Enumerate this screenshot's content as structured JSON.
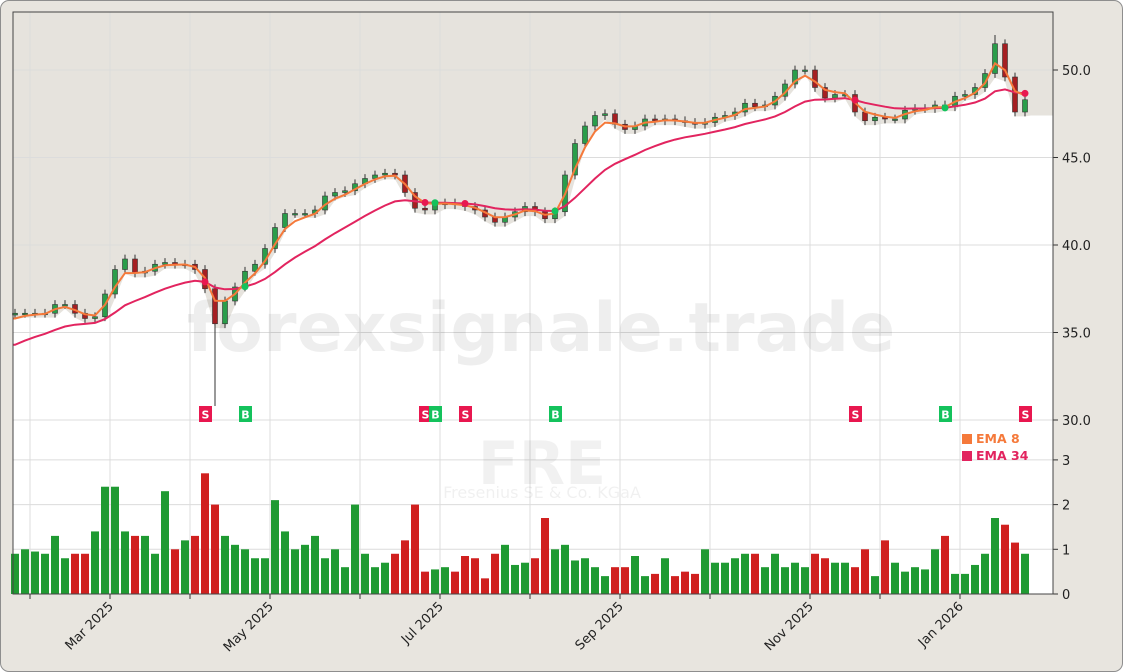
{
  "chart_data": {
    "type": "candlestick",
    "ticker_watermark": "FRE",
    "company_watermark": "Fresenius SE & Co. KGaA",
    "site_watermark": "forexsignale.trade",
    "dates": [
      "2025-01-27",
      "2025-01-30",
      "2025-02-03",
      "2025-02-06",
      "2025-02-10",
      "2025-02-13",
      "2025-02-17",
      "2025-02-21",
      "2025-02-24",
      "2025-02-28",
      "2025-03-04",
      "2025-03-07",
      "2025-03-11",
      "2025-03-14",
      "2025-03-18",
      "2025-03-21",
      "2025-03-26",
      "2025-03-28",
      "2025-04-02",
      "2025-04-07",
      "2025-04-09",
      "2025-04-14",
      "2025-04-17",
      "2025-04-22",
      "2025-04-24",
      "2025-04-28",
      "2025-05-02",
      "2025-05-05",
      "2025-05-09",
      "2025-05-12",
      "2025-05-16",
      "2025-05-19",
      "2025-05-23",
      "2025-05-27",
      "2025-05-30",
      "2025-06-03",
      "2025-06-06",
      "2025-06-10",
      "2025-06-13",
      "2025-06-17",
      "2025-06-20",
      "2025-06-24",
      "2025-06-27",
      "2025-07-01",
      "2025-07-04",
      "2025-07-08",
      "2025-07-11",
      "2025-07-15",
      "2025-07-18",
      "2025-07-22",
      "2025-07-25",
      "2025-07-29",
      "2025-08-01",
      "2025-08-05",
      "2025-08-08",
      "2025-08-12",
      "2025-08-15",
      "2025-08-19",
      "2025-08-22",
      "2025-08-26",
      "2025-08-29",
      "2025-09-02",
      "2025-09-05",
      "2025-09-08",
      "2025-09-12",
      "2025-09-15",
      "2025-09-18",
      "2025-09-22",
      "2025-09-25",
      "2025-09-29",
      "2025-10-02",
      "2025-10-06",
      "2025-10-08",
      "2025-10-13",
      "2025-10-15",
      "2025-10-17",
      "2025-10-22",
      "2025-10-24",
      "2025-10-28",
      "2025-10-31",
      "2025-11-04",
      "2025-11-07",
      "2025-11-12",
      "2025-11-17",
      "2025-11-20",
      "2025-11-24",
      "2025-11-28",
      "2025-12-01",
      "2025-12-05",
      "2025-12-09",
      "2025-12-12",
      "2025-12-17",
      "2025-12-22",
      "2025-12-23",
      "2025-12-30",
      "2026-01-02",
      "2026-01-05",
      "2026-01-09",
      "2026-01-13",
      "2026-01-16",
      "2026-01-21",
      "2026-01-23"
    ],
    "close": [
      36.1,
      36.1,
      36.1,
      36.1,
      36.6,
      36.6,
      36.1,
      35.8,
      35.9,
      37.2,
      38.6,
      39.2,
      38.4,
      38.5,
      38.9,
      39.0,
      38.9,
      38.9,
      38.6,
      37.5,
      35.5,
      36.8,
      37.6,
      38.5,
      38.9,
      39.8,
      41.0,
      41.8,
      41.8,
      41.8,
      42.0,
      42.8,
      43.0,
      43.1,
      43.5,
      43.8,
      44.0,
      44.1,
      44.0,
      43.0,
      42.1,
      42.0,
      42.3,
      42.4,
      42.3,
      42.2,
      42.0,
      41.6,
      41.3,
      41.6,
      41.9,
      42.2,
      41.9,
      41.5,
      41.9,
      44.0,
      45.8,
      46.8,
      47.4,
      47.5,
      46.9,
      46.6,
      46.8,
      47.2,
      47.1,
      47.2,
      47.1,
      47.0,
      46.9,
      47.0,
      47.3,
      47.4,
      47.6,
      48.1,
      47.9,
      48.0,
      48.5,
      49.2,
      50.0,
      50.0,
      49.0,
      48.4,
      48.6,
      48.6,
      47.6,
      47.1,
      47.3,
      47.2,
      47.2,
      47.7,
      47.8,
      47.8,
      48.0,
      47.9,
      48.5,
      48.6,
      49.0,
      49.8,
      51.5,
      49.6,
      47.6,
      48.3
    ],
    "volume_millions": [
      0.9,
      1.0,
      0.95,
      0.9,
      1.3,
      0.8,
      0.9,
      0.9,
      1.4,
      2.4,
      2.4,
      1.4,
      1.3,
      1.3,
      0.9,
      2.3,
      1.0,
      1.2,
      1.3,
      2.7,
      2.0,
      1.3,
      1.1,
      1.0,
      0.8,
      0.8,
      2.1,
      1.4,
      1.0,
      1.1,
      1.3,
      0.8,
      1.0,
      0.6,
      2.0,
      0.9,
      0.6,
      0.7,
      0.9,
      1.2,
      2.0,
      0.5,
      0.55,
      0.6,
      0.5,
      0.85,
      0.8,
      0.35,
      0.9,
      1.1,
      0.65,
      0.7,
      0.8,
      1.7,
      1.0,
      1.1,
      0.75,
      0.8,
      0.6,
      0.4,
      0.6,
      0.6,
      0.85,
      0.4,
      0.45,
      0.8,
      0.4,
      0.5,
      0.45,
      1.0,
      0.7,
      0.7,
      0.8,
      0.9,
      0.9,
      0.6,
      0.9,
      0.6,
      0.7,
      0.6,
      0.9,
      0.8,
      0.7,
      0.7,
      0.6,
      1.0,
      0.4,
      1.2,
      0.7,
      0.5,
      0.6,
      0.55,
      1.0,
      1.3,
      0.45,
      0.45,
      0.65,
      0.9,
      1.7,
      1.55,
      1.15,
      0.9
    ],
    "extremes": [
      {
        "date": "2025-04-09",
        "low": 30.8
      },
      {
        "date": "2026-01-13",
        "high": 52.0
      }
    ],
    "signals": [
      {
        "date": "2025-04-07",
        "type": "S"
      },
      {
        "date": "2025-04-22",
        "type": "B"
      },
      {
        "date": "2025-06-24",
        "type": "S"
      },
      {
        "date": "2025-06-27",
        "type": "B"
      },
      {
        "date": "2025-07-08",
        "type": "S"
      },
      {
        "date": "2025-08-08",
        "type": "B"
      },
      {
        "date": "2025-11-20",
        "type": "S"
      },
      {
        "date": "2025-12-23",
        "type": "B"
      },
      {
        "date": "2026-01-23",
        "type": "S"
      }
    ],
    "legend": [
      {
        "label": "EMA 8",
        "color": "#f5793a"
      },
      {
        "label": "EMA 34",
        "color": "#e2245f"
      }
    ],
    "legend_placement": "right",
    "price_ylim": [
      30.0,
      53.3
    ],
    "price_ticks": [
      "30.0",
      "35.0",
      "40.0",
      "45.0",
      "50.0"
    ],
    "volume_ylim": [
      0,
      3.2
    ],
    "volume_ticks": [
      "0",
      "1",
      "2",
      "3"
    ],
    "x_tick_labels": [
      "Mar 2025",
      "May 2025",
      "Jul 2025",
      "Sep 2025",
      "Nov 2025",
      "Jan 2026"
    ],
    "grid": true,
    "colors": {
      "up": "#1f9a32",
      "down": "#d0201f",
      "candle_up": "#2a9d4a",
      "candle_down": "#a51f22",
      "buy": "#14c25c",
      "sell": "#e8174f",
      "ema8": "#f5793a",
      "ema34": "#e2245f"
    }
  }
}
